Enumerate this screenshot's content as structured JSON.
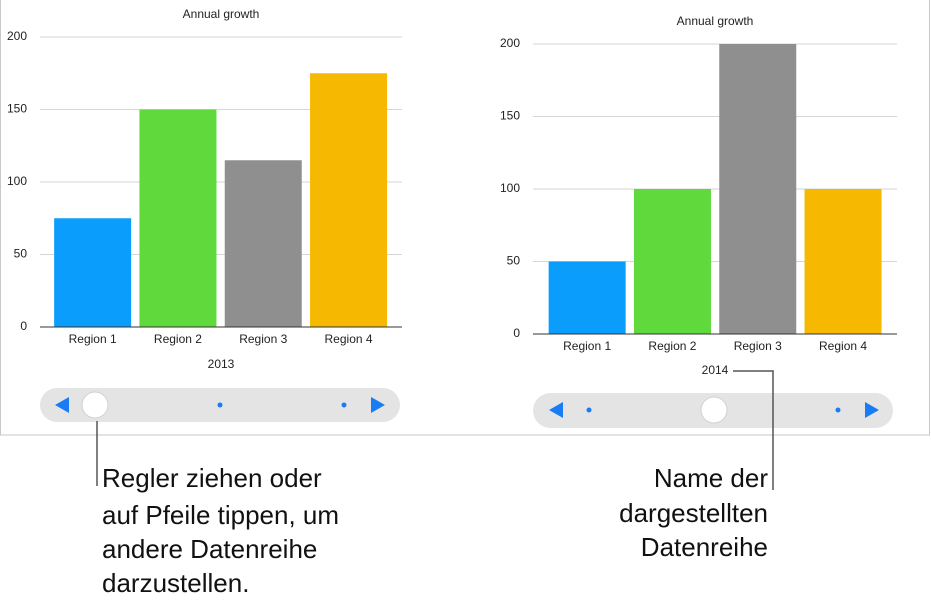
{
  "chart_data": [
    {
      "type": "bar",
      "title": "Annual growth",
      "series_name": "2013",
      "categories": [
        "Region 1",
        "Region 2",
        "Region 3",
        "Region 4"
      ],
      "values": [
        75,
        150,
        115,
        175
      ],
      "colors": [
        "#0a9dfc",
        "#5fd93b",
        "#8f8f8f",
        "#f6b800"
      ],
      "ylim": [
        0,
        200
      ],
      "yticks": [
        0,
        50,
        100,
        150,
        200
      ],
      "grid": true
    },
    {
      "type": "bar",
      "title": "Annual growth",
      "series_name": "2014",
      "categories": [
        "Region 1",
        "Region 2",
        "Region 3",
        "Region 4"
      ],
      "values": [
        50,
        100,
        200,
        100
      ],
      "colors": [
        "#0a9dfc",
        "#5fd93b",
        "#8f8f8f",
        "#f6b800"
      ],
      "ylim": [
        0,
        200
      ],
      "yticks": [
        0,
        50,
        100,
        150,
        200
      ],
      "grid": true
    }
  ],
  "callouts": [
    {
      "lines": [
        "Regler ziehen oder",
        "auf Pfeile tippen, um",
        "andere Datenreihe",
        "darzustellen."
      ]
    },
    {
      "lines": [
        "Name der",
        "dargestellten",
        "Datenreihe"
      ]
    }
  ]
}
